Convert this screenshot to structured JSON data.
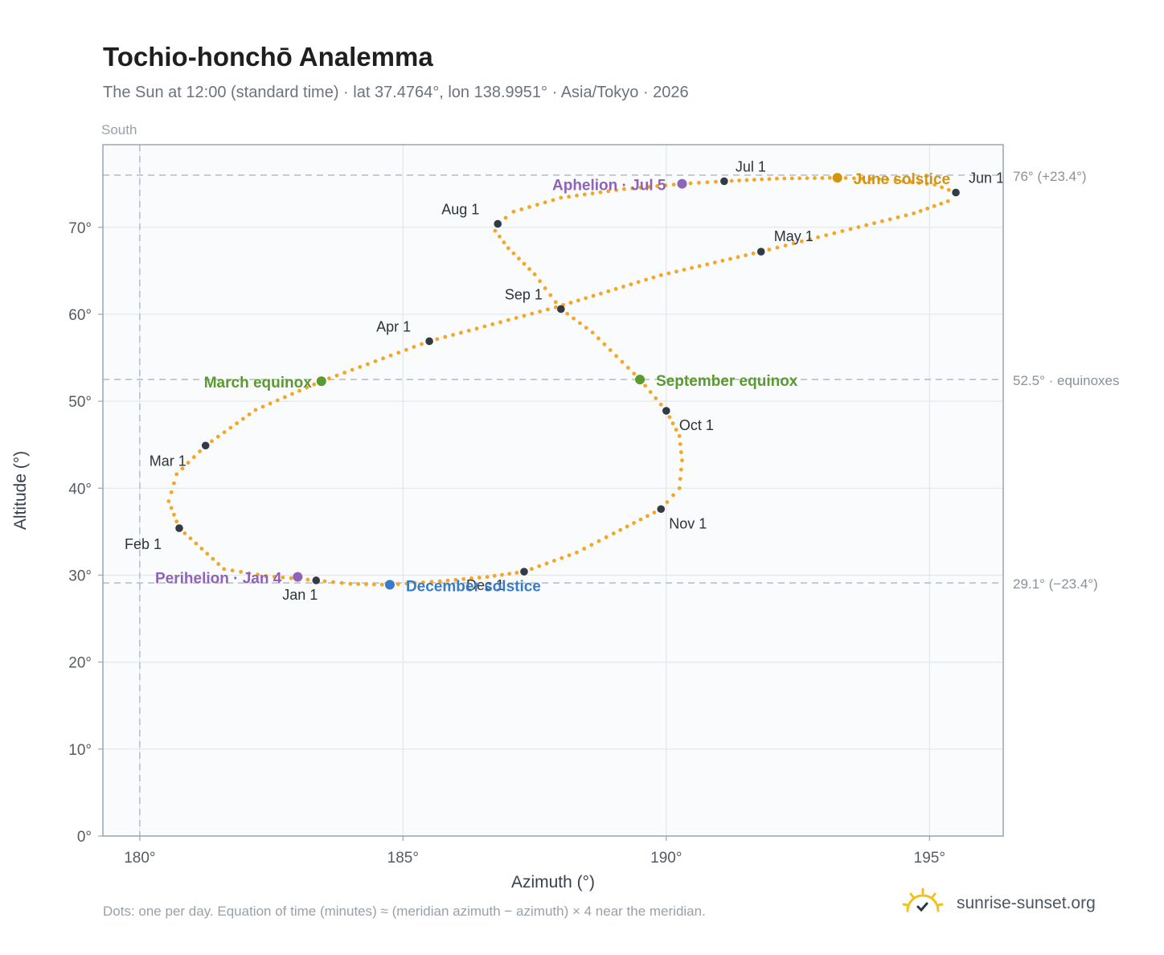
{
  "header": {
    "title": "Tochio-honchō Analemma",
    "subtitle": "The Sun at 12:00 (standard time) · lat 37.4764°, lon 138.9951° · Asia/Tokyo · 2026"
  },
  "footer": {
    "note": "Dots: one per day. Equation of time (minutes) ≈ (meridian azimuth − azimuth) × 4 near the meridian.",
    "brand": "sunrise-sunset.org"
  },
  "colors": {
    "curve": "#f5a623",
    "month_marker": "#333a44",
    "equinox": "#5a9a2e",
    "june_solstice": "#d4940f",
    "december_solstice": "#3a7bc8",
    "apsis": "#8e63b8",
    "plot_bg": "#f9fbfd",
    "grid": "#e2e7ed",
    "frame": "#9aa5b3",
    "reference_line": "#b8c0ca"
  },
  "chart_data": {
    "type": "scatter",
    "xlabel": "Azimuth (°)",
    "ylabel": "Altitude (°)",
    "xlim": [
      179.3,
      196.4
    ],
    "ylim": [
      0,
      79.5
    ],
    "xticks": [
      180,
      185,
      190,
      195
    ],
    "xtick_labels": [
      "180°",
      "185°",
      "190°",
      "195°"
    ],
    "yticks": [
      0,
      10,
      20,
      30,
      40,
      50,
      60,
      70
    ],
    "ytick_labels": [
      "0°",
      "10°",
      "20°",
      "30°",
      "40°",
      "50°",
      "60°",
      "70°"
    ],
    "grid": true,
    "south_marker": {
      "azimuth": 180,
      "label": "South"
    },
    "reference_lines": [
      {
        "altitude": 76.0,
        "label": "76° (+23.4°)"
      },
      {
        "altitude": 52.5,
        "label": "52.5° · equinoxes"
      },
      {
        "altitude": 29.1,
        "label": "29.1° (−23.4°)"
      }
    ],
    "series_key_points": [
      [
        183.35,
        29.4
      ],
      [
        182.4,
        29.9
      ],
      [
        181.6,
        30.7
      ],
      [
        180.75,
        35.4
      ],
      [
        180.55,
        38.5
      ],
      [
        180.7,
        41.6
      ],
      [
        181.25,
        44.9
      ],
      [
        182.2,
        49.0
      ],
      [
        183.45,
        52.3
      ],
      [
        185.5,
        56.9
      ],
      [
        187.9,
        60.8
      ],
      [
        189.9,
        64.5
      ],
      [
        191.8,
        67.2
      ],
      [
        193.5,
        69.8
      ],
      [
        194.7,
        71.6
      ],
      [
        195.35,
        73.0
      ],
      [
        195.5,
        74.0
      ],
      [
        195.1,
        74.9
      ],
      [
        194.2,
        75.5
      ],
      [
        193.25,
        75.7
      ],
      [
        192.1,
        75.6
      ],
      [
        191.1,
        75.3
      ],
      [
        190.3,
        75.0
      ],
      [
        189.2,
        74.4
      ],
      [
        188.0,
        73.4
      ],
      [
        187.1,
        71.8
      ],
      [
        186.8,
        70.4
      ],
      [
        186.75,
        69.6
      ],
      [
        187.0,
        67.6
      ],
      [
        187.5,
        64.6
      ],
      [
        188.0,
        60.6
      ],
      [
        188.6,
        57.9
      ],
      [
        189.5,
        52.5
      ],
      [
        190.0,
        48.9
      ],
      [
        190.25,
        46.0
      ],
      [
        190.3,
        43.2
      ],
      [
        190.25,
        40.0
      ],
      [
        189.9,
        37.6
      ],
      [
        189.0,
        34.8
      ],
      [
        188.3,
        32.6
      ],
      [
        187.3,
        30.4
      ],
      [
        186.6,
        29.8
      ],
      [
        185.7,
        29.3
      ],
      [
        184.75,
        28.9
      ],
      [
        184.0,
        29.0
      ],
      [
        183.35,
        29.4
      ]
    ],
    "month_markers": [
      {
        "label": "Jan 1",
        "azimuth": 183.35,
        "altitude": 29.4
      },
      {
        "label": "Feb 1",
        "azimuth": 180.75,
        "altitude": 35.4
      },
      {
        "label": "Mar 1",
        "azimuth": 181.25,
        "altitude": 44.9
      },
      {
        "label": "Apr 1",
        "azimuth": 185.5,
        "altitude": 56.9
      },
      {
        "label": "May 1",
        "azimuth": 191.8,
        "altitude": 67.2
      },
      {
        "label": "Jun 1",
        "azimuth": 195.5,
        "altitude": 74.0
      },
      {
        "label": "Jul 1",
        "azimuth": 191.1,
        "altitude": 75.3
      },
      {
        "label": "Aug 1",
        "azimuth": 186.8,
        "altitude": 70.4
      },
      {
        "label": "Sep 1",
        "azimuth": 188.0,
        "altitude": 60.6
      },
      {
        "label": "Oct 1",
        "azimuth": 190.0,
        "altitude": 48.9
      },
      {
        "label": "Nov 1",
        "azimuth": 189.9,
        "altitude": 37.6
      },
      {
        "label": "Dec 1",
        "azimuth": 187.3,
        "altitude": 30.4
      }
    ],
    "events": [
      {
        "label": "March equinox",
        "azimuth": 183.45,
        "altitude": 52.3,
        "color_key": "equinox"
      },
      {
        "label": "September equinox",
        "azimuth": 189.5,
        "altitude": 52.5,
        "color_key": "equinox"
      },
      {
        "label": "June solstice",
        "azimuth": 193.25,
        "altitude": 75.7,
        "color_key": "june_solstice"
      },
      {
        "label": "December solstice",
        "azimuth": 184.75,
        "altitude": 28.9,
        "color_key": "december_solstice"
      },
      {
        "label": "Perihelion · Jan 4",
        "azimuth": 183.0,
        "altitude": 29.8,
        "color_key": "apsis"
      },
      {
        "label": "Aphelion · Jul 5",
        "azimuth": 190.3,
        "altitude": 75.0,
        "color_key": "apsis"
      }
    ]
  }
}
